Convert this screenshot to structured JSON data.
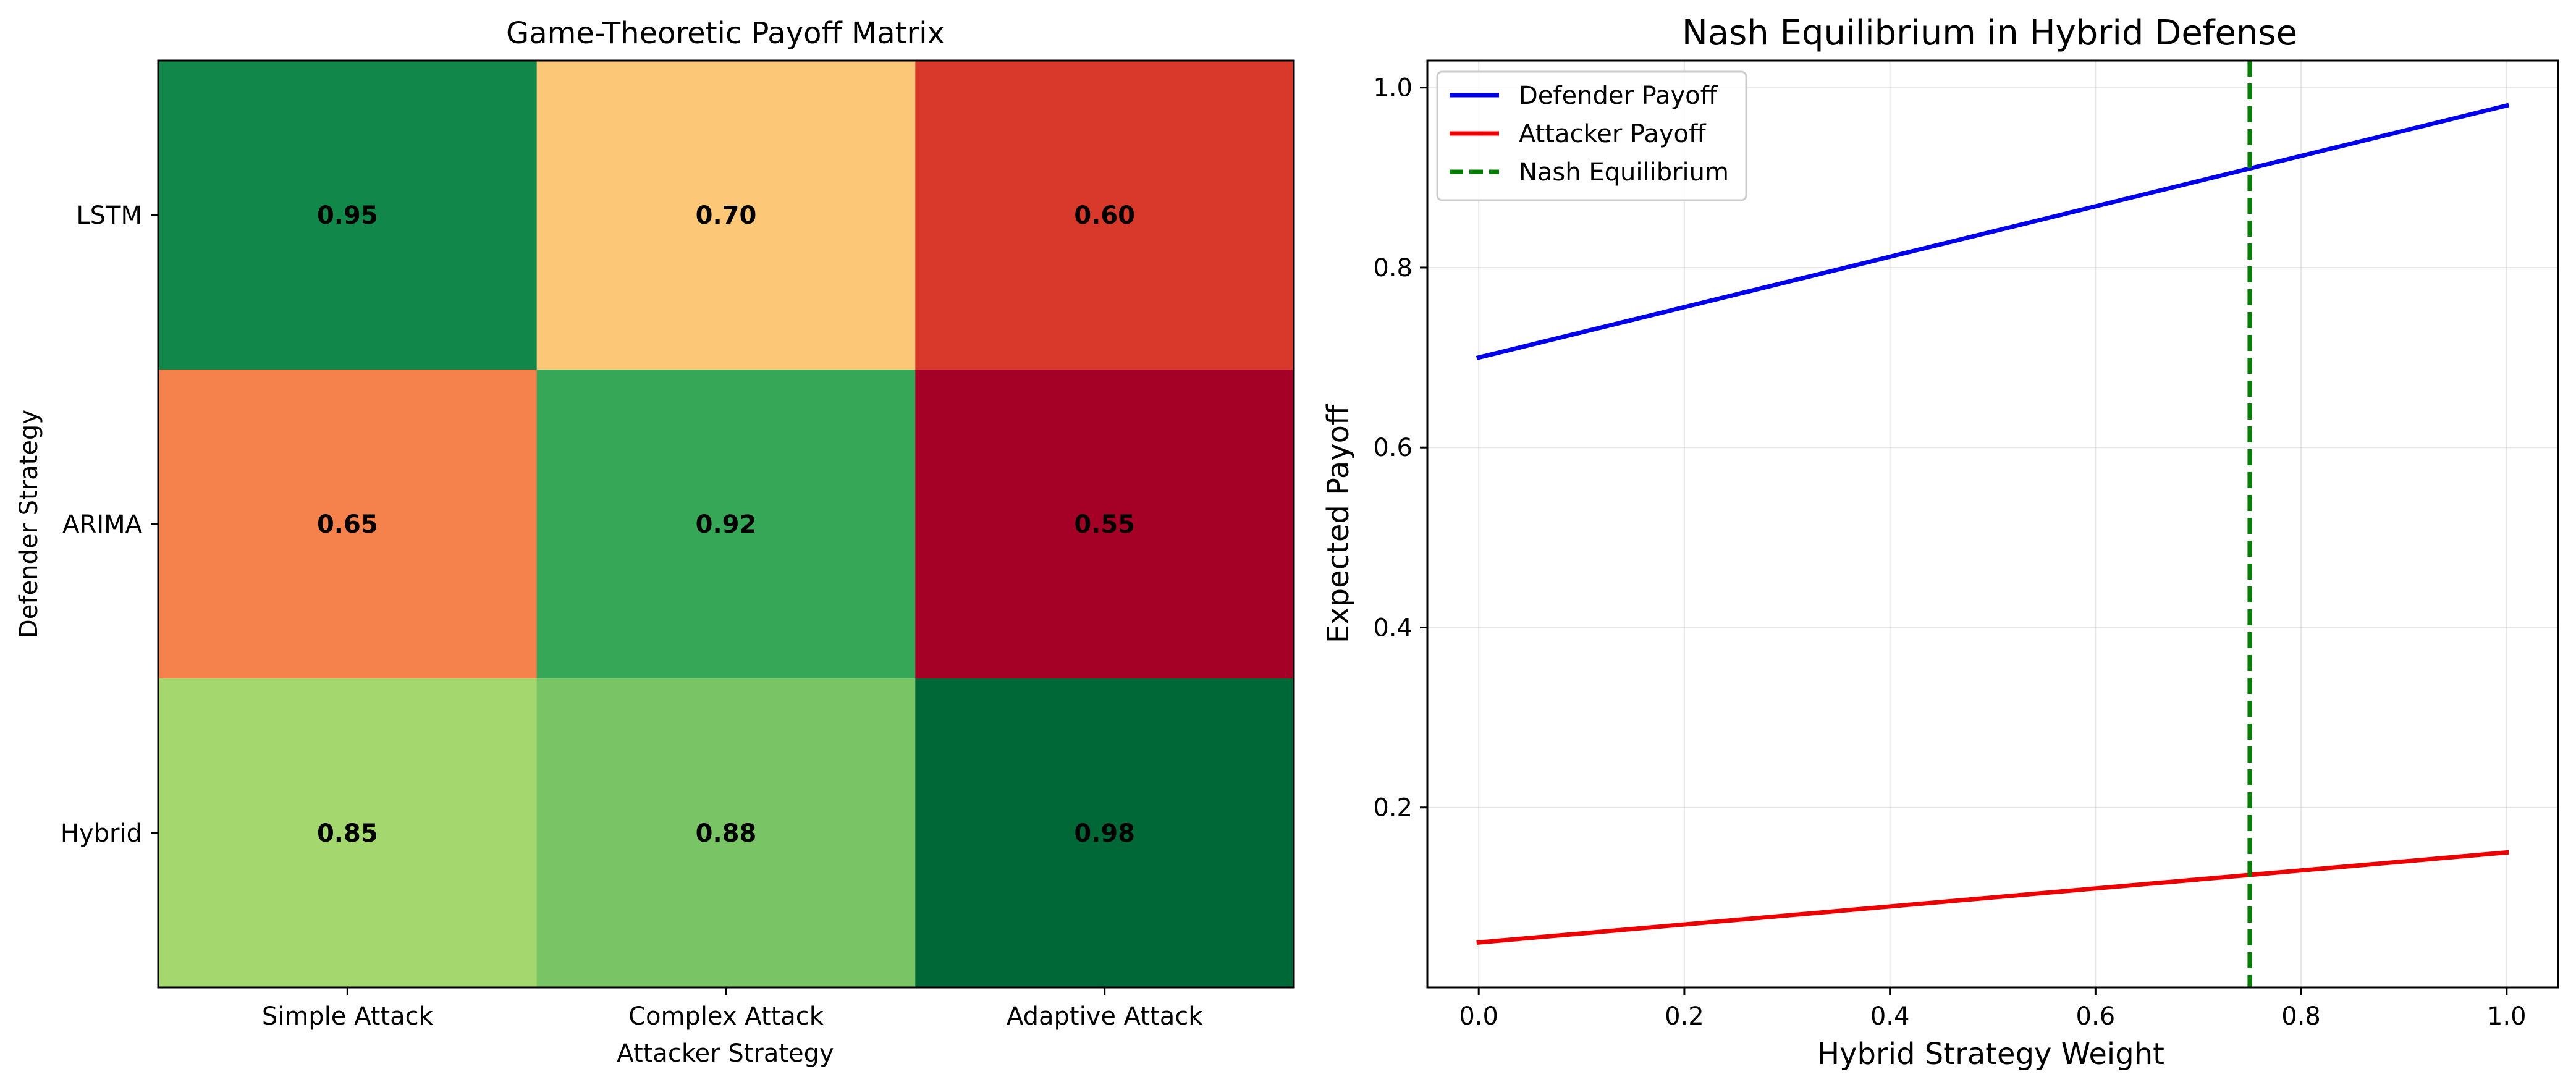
{
  "chart_data": [
    {
      "type": "heatmap",
      "title": "Game-Theoretic Payoff Matrix",
      "xlabel": "Attacker Strategy",
      "ylabel": "Defender Strategy",
      "x_categories": [
        "Simple Attack",
        "Complex Attack",
        "Adaptive Attack"
      ],
      "y_categories": [
        "LSTM",
        "ARIMA",
        "Hybrid"
      ],
      "values": [
        [
          0.95,
          0.7,
          0.6
        ],
        [
          0.65,
          0.92,
          0.55
        ],
        [
          0.85,
          0.88,
          0.98
        ]
      ],
      "value_labels": [
        [
          "0.95",
          "0.70",
          "0.60"
        ],
        [
          "0.65",
          "0.92",
          "0.55"
        ],
        [
          "0.85",
          "0.88",
          "0.98"
        ]
      ],
      "colormap": "RdYlGn",
      "colors": {
        "0.55": "#a50026",
        "0.60": "#d9392a",
        "0.65": "#f5814d",
        "0.70": "#fdc778",
        "0.85": "#a4d86e",
        "0.88": "#79c465",
        "0.92": "#36a657",
        "0.95": "#11884a",
        "0.98": "#006837"
      }
    },
    {
      "type": "line",
      "title": "Nash Equilibrium in Hybrid Defense",
      "xlabel": "Hybrid Strategy Weight",
      "ylabel": "Expected Payoff",
      "xlim": [
        -0.05,
        1.05
      ],
      "ylim": [
        0.0,
        1.03
      ],
      "xticks": [
        "0.0",
        "0.2",
        "0.4",
        "0.6",
        "0.8",
        "1.0"
      ],
      "yticks": [
        "0.2",
        "0.4",
        "0.6",
        "0.8",
        "1.0"
      ],
      "grid": true,
      "legend_position": "top-left",
      "series": [
        {
          "name": "Defender Payoff",
          "x": [
            0.0,
            1.0
          ],
          "y": [
            0.7,
            0.98
          ],
          "color": "#0000ee",
          "style": "solid"
        },
        {
          "name": "Attacker Payoff",
          "x": [
            0.0,
            1.0
          ],
          "y": [
            0.05,
            0.15
          ],
          "color": "#ee0000",
          "style": "solid"
        }
      ],
      "vlines": [
        {
          "name": "Nash Equilibrium",
          "x": 0.75,
          "color": "#007f00",
          "style": "dashed"
        }
      ]
    }
  ]
}
